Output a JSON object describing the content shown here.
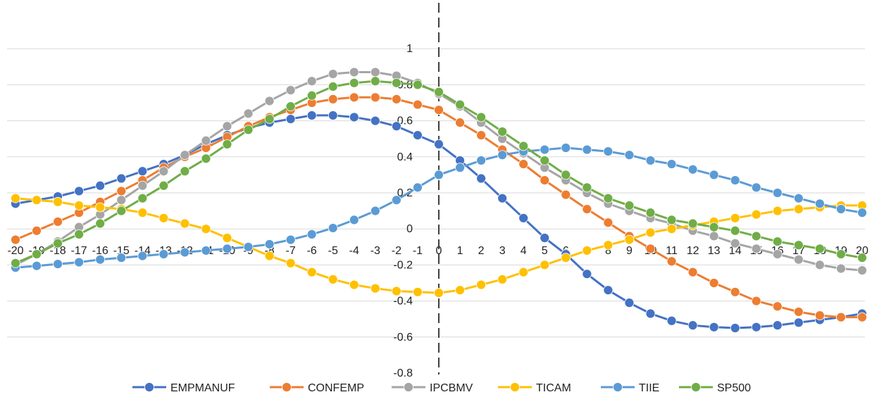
{
  "chart_data": {
    "type": "line",
    "title": "",
    "xlabel": "",
    "ylabel": "",
    "x": [
      -20,
      -19,
      -18,
      -17,
      -16,
      -15,
      -14,
      -13,
      -12,
      -11,
      -10,
      -9,
      -8,
      -7,
      -6,
      -5,
      -4,
      -3,
      -2,
      -1,
      0,
      1,
      2,
      3,
      4,
      5,
      6,
      7,
      8,
      9,
      10,
      11,
      12,
      13,
      14,
      15,
      16,
      17,
      18,
      19,
      20
    ],
    "ylim": [
      -0.8,
      1.2
    ],
    "yticks": [
      -0.8,
      -0.6,
      -0.4,
      -0.2,
      0,
      0.2,
      0.4,
      0.6,
      0.8,
      1
    ],
    "ytick_labels": [
      "-0.8",
      "-0.6",
      "-0.4",
      "-0.2",
      "0",
      "0.2",
      "0.4",
      "0.6",
      "0.8",
      "1"
    ],
    "xtick_labels": [
      "-20",
      "-19",
      "-18",
      "-17",
      "-16",
      "-15",
      "-14",
      "-13",
      "-12",
      "-11",
      "-10",
      "-9",
      "-8",
      "-7",
      "-6",
      "-5",
      "-4",
      "-3",
      "-2",
      "-1",
      "0",
      "1",
      "2",
      "3",
      "4",
      "5",
      "6",
      "7",
      "8",
      "9",
      "10",
      "11",
      "12",
      "13",
      "14",
      "15",
      "16",
      "17",
      "18",
      "19",
      "20"
    ],
    "grid": "horizontal",
    "vertical_reference_line_at": 0,
    "legend_position": "bottom",
    "series": [
      {
        "name": "EMPMANUF",
        "color": "#4472C4",
        "values": [
          0.14,
          0.16,
          0.18,
          0.21,
          0.24,
          0.28,
          0.32,
          0.36,
          0.41,
          0.47,
          0.52,
          0.56,
          0.59,
          0.61,
          0.63,
          0.63,
          0.62,
          0.6,
          0.57,
          0.52,
          0.47,
          0.38,
          0.28,
          0.17,
          0.06,
          -0.05,
          -0.14,
          -0.25,
          -0.34,
          -0.41,
          -0.47,
          -0.51,
          -0.535,
          -0.545,
          -0.55,
          -0.545,
          -0.535,
          -0.52,
          -0.505,
          -0.49,
          -0.47
        ]
      },
      {
        "name": "CONFEMP",
        "color": "#ED7D31",
        "values": [
          -0.06,
          -0.01,
          0.04,
          0.09,
          0.15,
          0.21,
          0.27,
          0.34,
          0.4,
          0.45,
          0.51,
          0.57,
          0.62,
          0.66,
          0.7,
          0.72,
          0.73,
          0.73,
          0.72,
          0.69,
          0.66,
          0.59,
          0.52,
          0.44,
          0.36,
          0.27,
          0.19,
          0.11,
          0.035,
          -0.04,
          -0.11,
          -0.18,
          -0.24,
          -0.3,
          -0.35,
          -0.4,
          -0.43,
          -0.46,
          -0.48,
          -0.49,
          -0.49
        ]
      },
      {
        "name": "IPCBMV",
        "color": "#A5A5A5",
        "values": [
          -0.2,
          -0.14,
          -0.07,
          0.01,
          0.08,
          0.16,
          0.24,
          0.32,
          0.41,
          0.49,
          0.57,
          0.64,
          0.71,
          0.77,
          0.82,
          0.86,
          0.87,
          0.87,
          0.85,
          0.81,
          0.75,
          0.68,
          0.59,
          0.5,
          0.42,
          0.34,
          0.27,
          0.2,
          0.14,
          0.1,
          0.06,
          0.03,
          -0.01,
          -0.04,
          -0.08,
          -0.11,
          -0.14,
          -0.17,
          -0.2,
          -0.22,
          -0.23
        ]
      },
      {
        "name": "TICAM",
        "color": "#FFC000",
        "values": [
          0.17,
          0.16,
          0.15,
          0.13,
          0.12,
          0.11,
          0.09,
          0.06,
          0.03,
          0.0,
          -0.05,
          -0.1,
          -0.15,
          -0.19,
          -0.24,
          -0.28,
          -0.31,
          -0.33,
          -0.345,
          -0.35,
          -0.355,
          -0.34,
          -0.31,
          -0.28,
          -0.24,
          -0.2,
          -0.16,
          -0.12,
          -0.09,
          -0.06,
          -0.02,
          0.0,
          0.02,
          0.04,
          0.06,
          0.08,
          0.1,
          0.11,
          0.12,
          0.13,
          0.13
        ]
      },
      {
        "name": "TIIE",
        "color": "#5B9BD5",
        "values": [
          -0.215,
          -0.205,
          -0.195,
          -0.185,
          -0.17,
          -0.16,
          -0.15,
          -0.14,
          -0.13,
          -0.12,
          -0.11,
          -0.1,
          -0.085,
          -0.06,
          -0.03,
          0.005,
          0.05,
          0.1,
          0.16,
          0.23,
          0.3,
          0.34,
          0.38,
          0.41,
          0.43,
          0.44,
          0.45,
          0.44,
          0.43,
          0.41,
          0.38,
          0.36,
          0.33,
          0.3,
          0.27,
          0.23,
          0.2,
          0.17,
          0.14,
          0.11,
          0.09
        ]
      },
      {
        "name": "SP500",
        "color": "#70AD47",
        "values": [
          -0.19,
          -0.14,
          -0.08,
          -0.03,
          0.03,
          0.1,
          0.17,
          0.24,
          0.32,
          0.39,
          0.47,
          0.55,
          0.61,
          0.68,
          0.74,
          0.79,
          0.81,
          0.82,
          0.81,
          0.8,
          0.76,
          0.69,
          0.62,
          0.54,
          0.46,
          0.38,
          0.3,
          0.23,
          0.17,
          0.13,
          0.09,
          0.05,
          0.03,
          0.01,
          -0.01,
          -0.04,
          -0.07,
          -0.09,
          -0.11,
          -0.14,
          -0.16
        ]
      }
    ]
  }
}
